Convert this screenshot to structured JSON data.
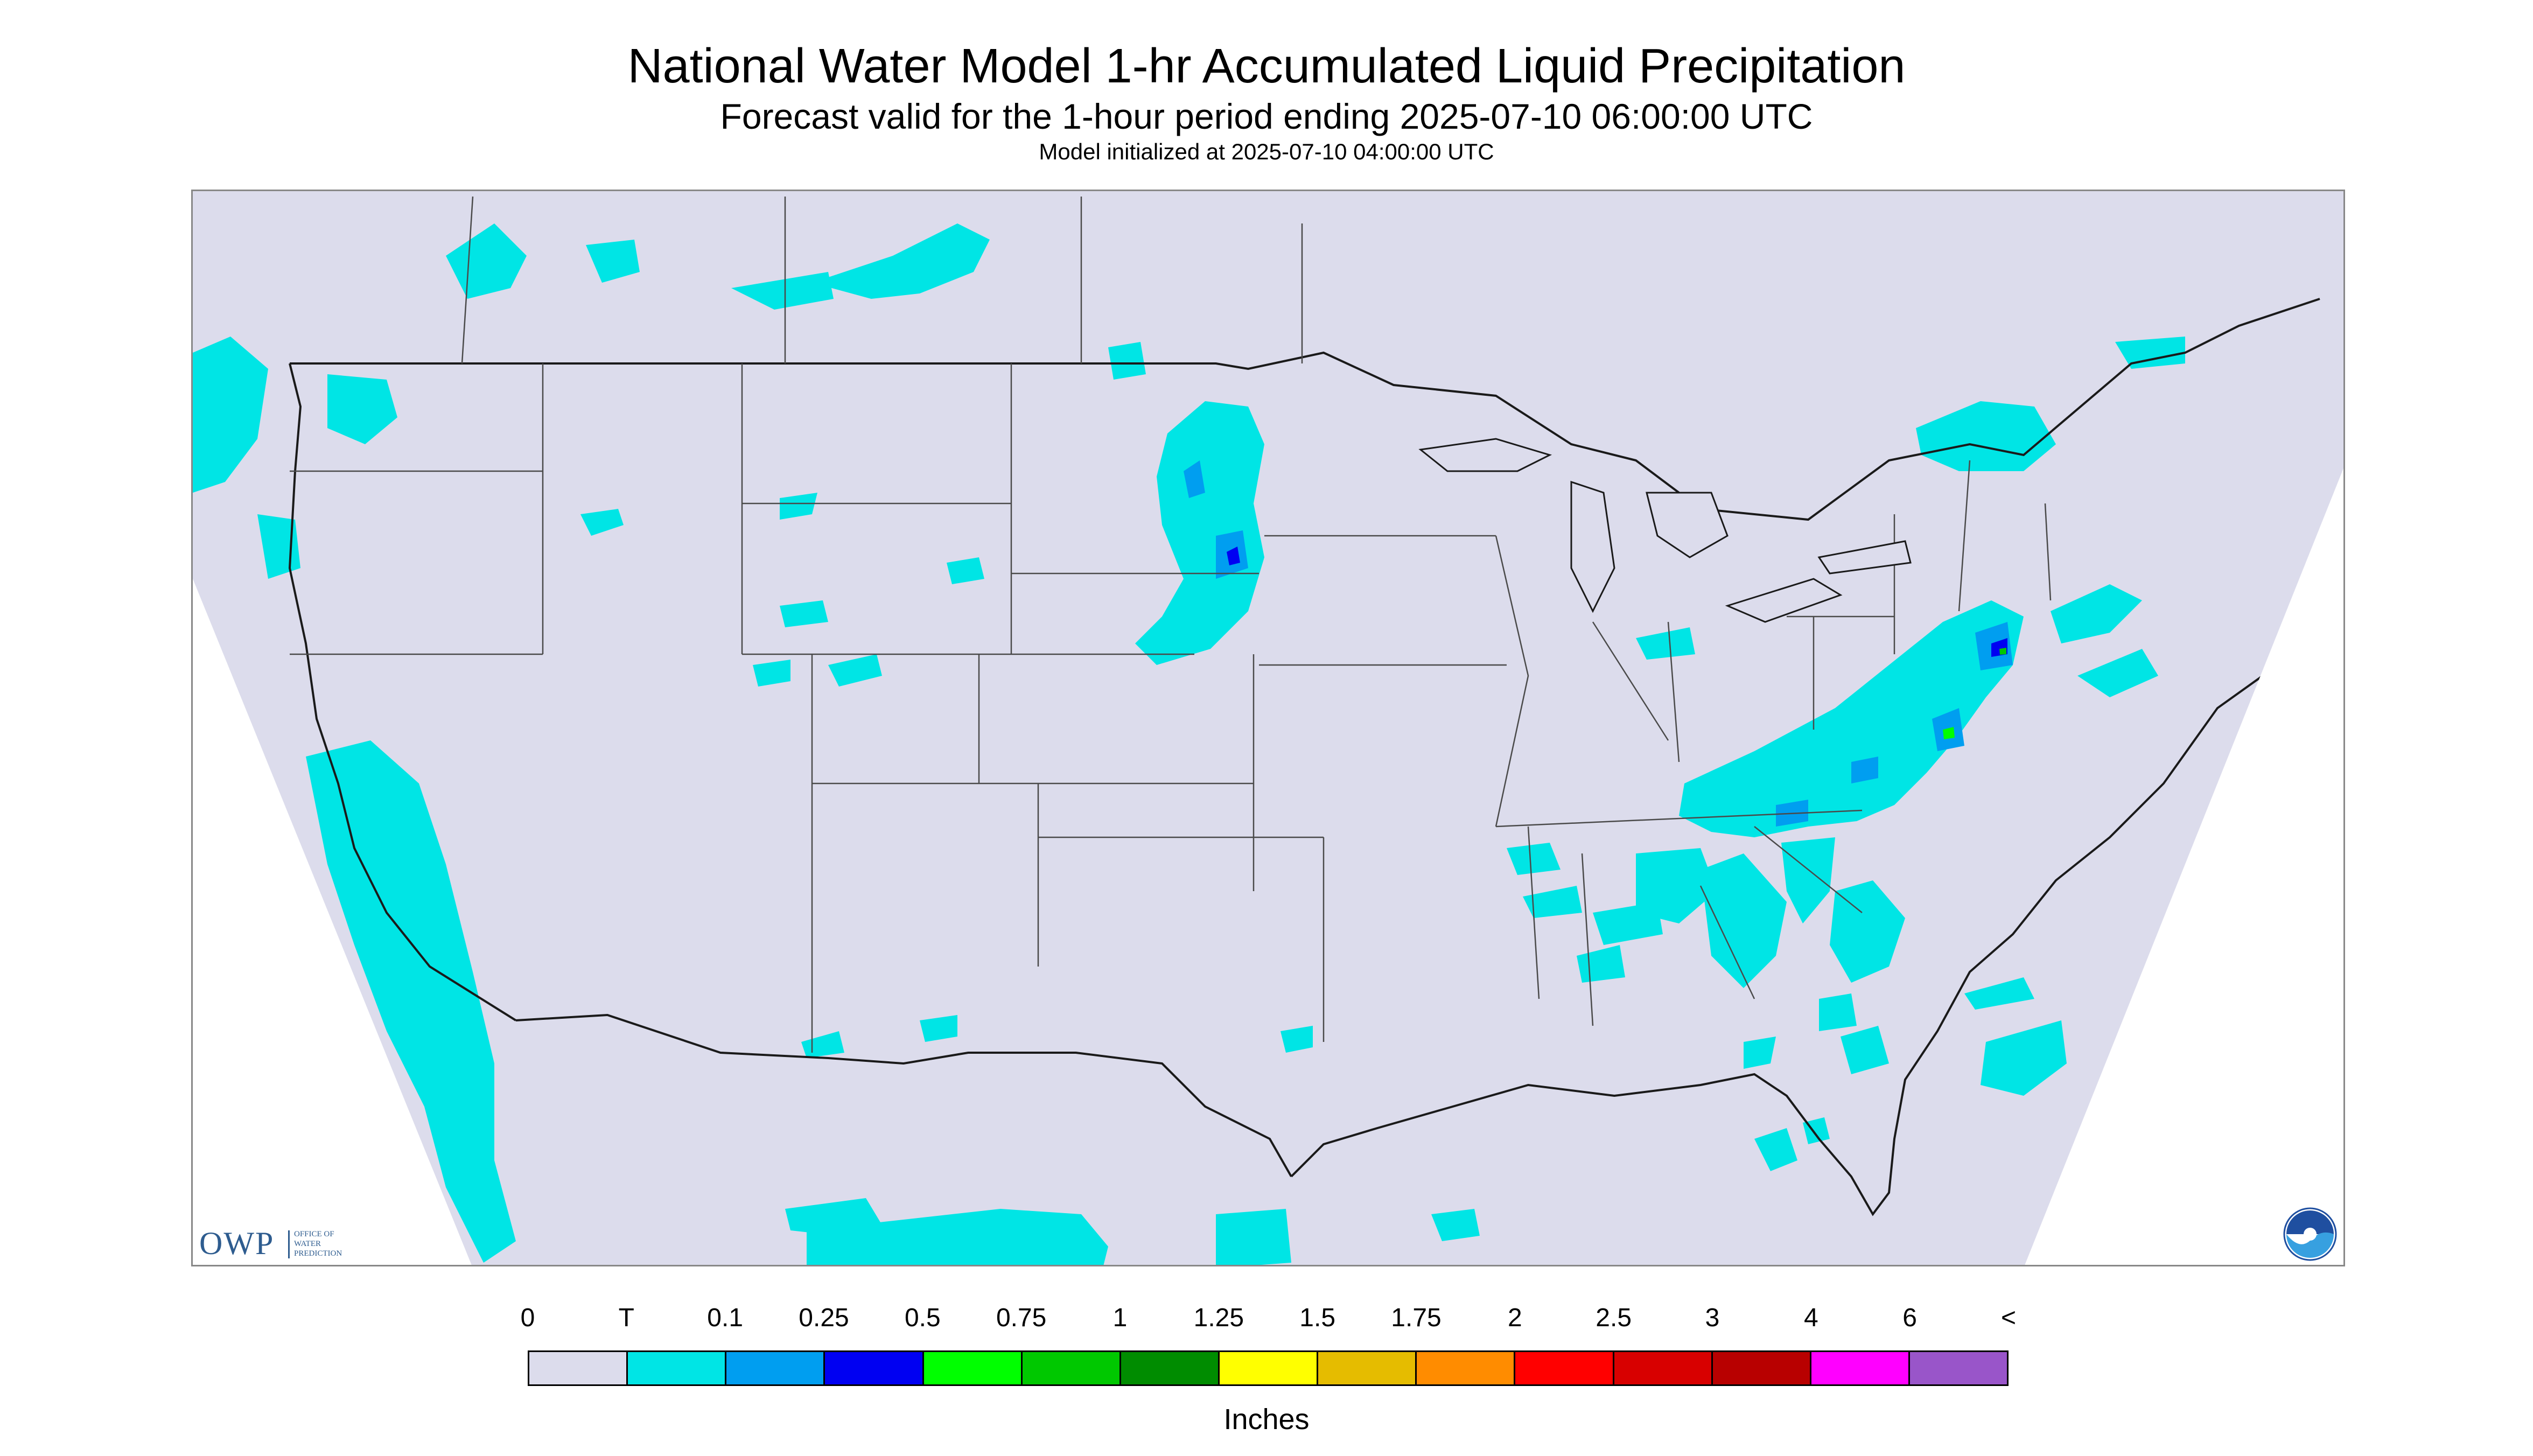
{
  "header": {
    "title": "National Water Model 1-hr Accumulated Liquid Precipitation",
    "subtitle": "Forecast valid for the 1-hour period ending 2025-07-10 06:00:00 UTC",
    "init": "Model initialized at 2025-07-10 04:00:00 UTC"
  },
  "logos": {
    "owp_mark": "OWP",
    "owp_text_1": "OFFICE OF",
    "owp_text_2": "WATER",
    "owp_text_3": "PREDICTION",
    "noaa": "NOAA"
  },
  "map": {
    "background_color": "#dcdcec",
    "outside_color": "#ffffff",
    "border_color": "#3a3a3a"
  },
  "legend": {
    "units": "Inches",
    "labels": [
      "0",
      "T",
      "0.1",
      "0.25",
      "0.5",
      "0.75",
      "1",
      "1.25",
      "1.5",
      "1.75",
      "2",
      "2.5",
      "3",
      "4",
      "6",
      "<"
    ],
    "colors": [
      "#dcdcec",
      "#00e5e5",
      "#009ef0",
      "#0000f2",
      "#00ff00",
      "#00c800",
      "#008c00",
      "#ffff00",
      "#e5bc00",
      "#ff8c00",
      "#ff0000",
      "#d80000",
      "#b80000",
      "#ff00ff",
      "#9955c9"
    ]
  }
}
